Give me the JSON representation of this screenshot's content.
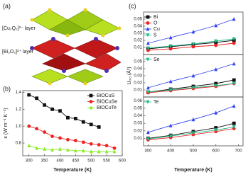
{
  "figure": {
    "panel_labels": [
      "(a)",
      "(b)",
      "(c)"
    ],
    "layer_labels": [
      "[Cu₂Q₂]²⁻ layer",
      "[Bi₂O₂]²⁺ layer"
    ]
  },
  "chart_data": [
    {
      "type": "line",
      "xlabel": "Temperature (K)",
      "ylabel": "κ (W m⁻¹ K⁻¹)",
      "legend": "upper-right",
      "x": [
        300,
        325,
        350,
        375,
        400,
        425,
        450,
        475,
        500,
        525,
        550,
        575
      ],
      "xlim": [
        280,
        600
      ],
      "xticks": [
        300,
        350,
        400,
        450,
        500,
        550,
        600
      ],
      "ylim": [
        0.65,
        1.42
      ],
      "yticks": [
        0.8,
        {
          "value": 1,
          "label": "1.0"
        },
        1.2,
        1.4
      ],
      "series": [
        {
          "name": "BiOCuS",
          "color": "#111111",
          "marker": "square",
          "values": [
            1.37,
            1.33,
            1.25,
            1.2,
            1.18,
            1.1,
            1.09,
            1.05,
            1.02,
            0.99,
            null,
            null
          ]
        },
        {
          "name": "BiOCuSe",
          "color": "#ee2222",
          "marker": "circle",
          "values": [
            1.0,
            0.97,
            0.93,
            0.88,
            0.86,
            0.84,
            0.83,
            0.81,
            0.79,
            0.78,
            0.77,
            0.74
          ]
        },
        {
          "name": "BiOCuTe",
          "color": "#88ee22",
          "marker": "triangle",
          "values": [
            0.77,
            0.74,
            0.73,
            0.72,
            0.73,
            0.72,
            0.71,
            0.71,
            0.7,
            0.7,
            0.7,
            0.7
          ]
        }
      ]
    },
    {
      "type": "line",
      "legend": "upper-left",
      "x": [
        300,
        400,
        500,
        600,
        680
      ],
      "xlim": [
        280,
        720
      ],
      "ylim": [
        0,
        0.06
      ],
      "yticks": [
        0.01,
        0.02,
        0.03,
        0.04,
        0.05
      ],
      "series": [
        {
          "name": "Bi",
          "color": "#111111",
          "marker": "square",
          "values": [
            0.008,
            0.011,
            0.014,
            0.017,
            0.02
          ]
        },
        {
          "name": "O",
          "color": "#ee2222",
          "marker": "circle",
          "values": [
            0.006,
            0.008,
            0.011,
            0.013,
            0.016
          ]
        },
        {
          "name": "Cu",
          "color": "#3344ee",
          "marker": "triangle",
          "values": [
            0.016,
            0.024,
            0.032,
            0.041,
            0.05
          ]
        },
        {
          "name": "S",
          "color": "#22bb88",
          "marker": "triangle-down",
          "values": [
            0.009,
            0.012,
            0.015,
            0.019,
            0.022
          ]
        }
      ]
    },
    {
      "type": "line",
      "legend": "upper-left",
      "ylabel": "Uᵢₛₒ (Å²)",
      "x": [
        300,
        400,
        500,
        600,
        680
      ],
      "xlim": [
        280,
        720
      ],
      "ylim": [
        0,
        0.06
      ],
      "yticks": [
        0.01,
        0.02,
        0.03,
        0.04,
        0.05
      ],
      "series": [
        {
          "color": "#111111",
          "marker": "square",
          "values": [
            0.007,
            0.011,
            0.015,
            0.019,
            0.024
          ]
        },
        {
          "color": "#ee2222",
          "marker": "circle",
          "values": [
            0.006,
            0.009,
            0.012,
            0.015,
            0.019
          ]
        },
        {
          "color": "#3344ee",
          "marker": "triangle",
          "values": [
            0.013,
            0.022,
            0.03,
            0.039,
            0.047
          ]
        },
        {
          "name": "Se",
          "color": "#22bb88",
          "marker": "triangle-down",
          "values": [
            0.007,
            0.01,
            0.013,
            0.016,
            0.019
          ]
        }
      ]
    },
    {
      "type": "line",
      "legend": "upper-left",
      "xlabel": "Temperature (K)",
      "x": [
        300,
        400,
        500,
        600,
        680
      ],
      "xlim": [
        280,
        720
      ],
      "xticks": [
        300,
        400,
        500,
        600,
        700
      ],
      "ylim": [
        0,
        0.065
      ],
      "yticks": [
        0.01,
        0.02,
        0.03,
        0.04,
        0.05,
        0.06
      ],
      "series": [
        {
          "color": "#111111",
          "marker": "square",
          "values": [
            0.01,
            0.014,
            0.019,
            0.024,
            0.03
          ]
        },
        {
          "color": "#ee2222",
          "marker": "circle",
          "values": [
            0.008,
            0.011,
            0.015,
            0.019,
            0.023
          ]
        },
        {
          "color": "#3344ee",
          "marker": "triangle",
          "values": [
            0.018,
            0.027,
            0.035,
            0.044,
            0.053
          ]
        },
        {
          "name": "Te",
          "color": "#22bb88",
          "marker": "triangle-down",
          "values": [
            0.009,
            0.013,
            0.017,
            0.021,
            0.025
          ]
        }
      ]
    }
  ]
}
